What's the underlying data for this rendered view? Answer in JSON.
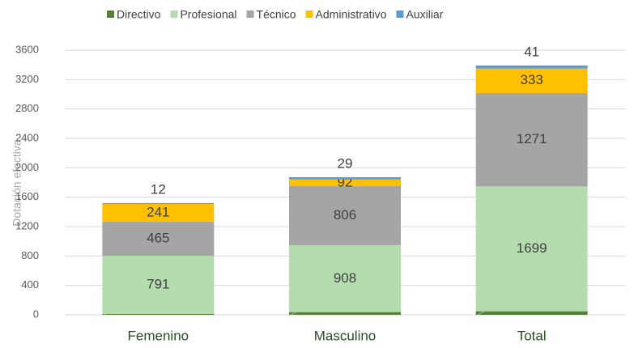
{
  "chart_data": {
    "type": "stacked_bar",
    "y_label": "Dotación efectiva",
    "categories": [
      "Femenino",
      "Masculino",
      "Total"
    ],
    "series": [
      {
        "name": "Directivo",
        "color": "#548235",
        "values": [
          11,
          37,
          48
        ]
      },
      {
        "name": "Profesional",
        "color": "#b5dcae",
        "values": [
          791,
          908,
          1699
        ]
      },
      {
        "name": "Técnico",
        "color": "#a5a5a5",
        "values": [
          465,
          806,
          1271
        ]
      },
      {
        "name": "Administrativo",
        "color": "#ffc000",
        "values": [
          241,
          92,
          333
        ]
      },
      {
        "name": "Auxiliar",
        "color": "#5b9bd5",
        "values": [
          12,
          29,
          41
        ]
      }
    ],
    "ylim": [
      0,
      3600
    ],
    "yticks": [
      0,
      400,
      800,
      1200,
      1600,
      2000,
      2400,
      2800,
      3200,
      3600
    ],
    "grid": true,
    "legend": "top"
  }
}
